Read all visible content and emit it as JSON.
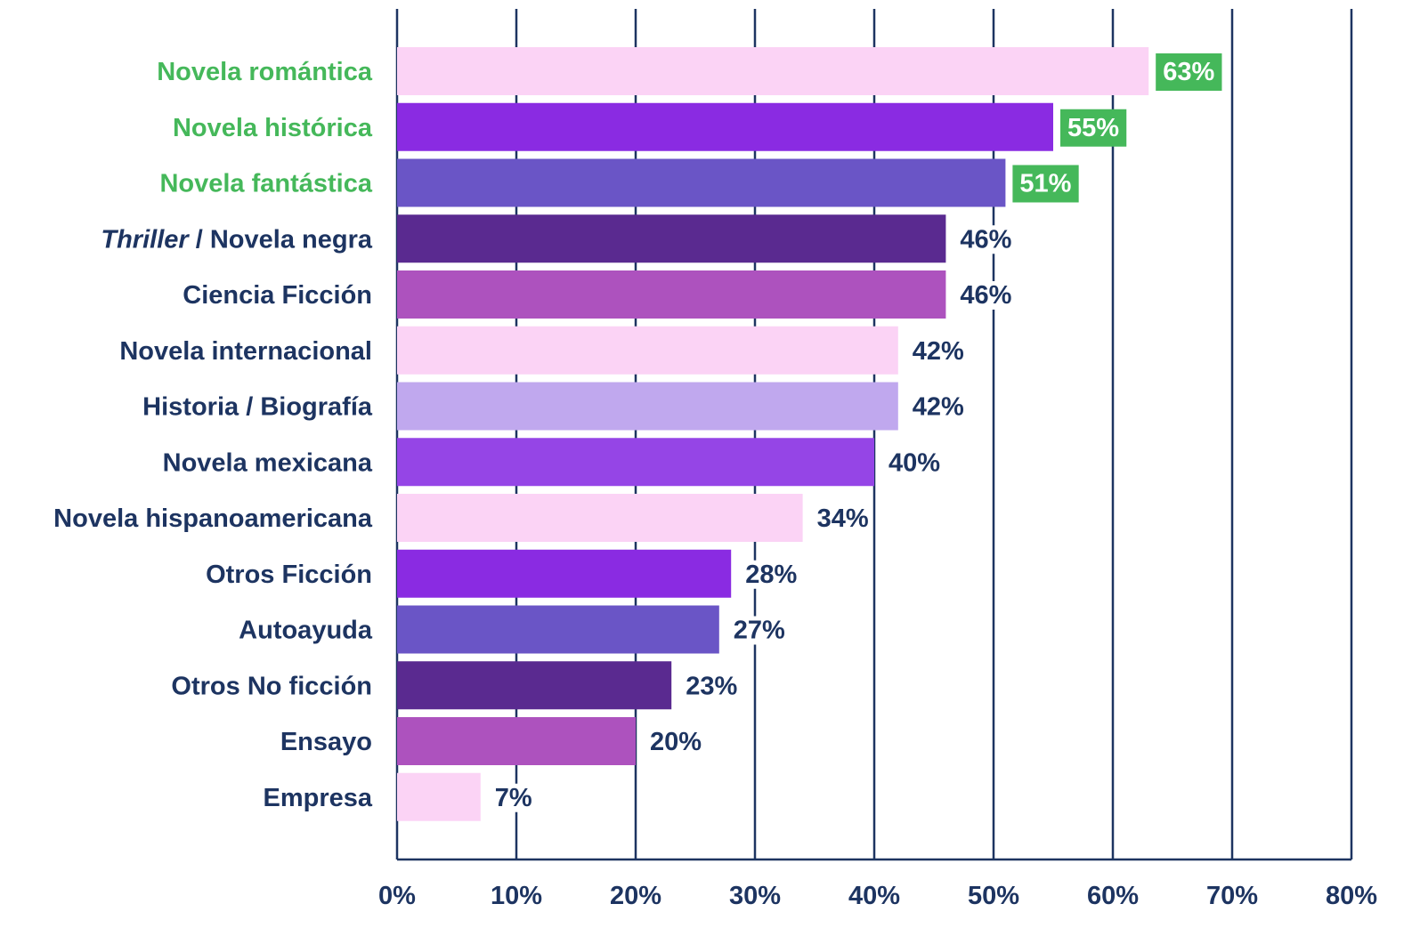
{
  "chart_data": {
    "type": "bar",
    "orientation": "horizontal",
    "title": "",
    "xlabel": "",
    "ylabel": "",
    "xlim": [
      0,
      80
    ],
    "x_ticks": [
      0,
      10,
      20,
      30,
      40,
      50,
      60,
      70,
      80
    ],
    "x_tick_labels": [
      "0%",
      "10%",
      "20%",
      "30%",
      "40%",
      "50%",
      "60%",
      "70%",
      "80%"
    ],
    "grid": "vertical",
    "categories": [
      "Novela romántica",
      "Novela histórica",
      "Novela fantástica",
      "Thriller / Novela negra",
      "Ciencia Ficción",
      "Novela internacional",
      "Historia / Biografía",
      "Novela mexicana",
      "Novela hispanoamericana",
      "Otros Ficción",
      "Autoayuda",
      "Otros No ficción",
      "Ensayo",
      "Empresa"
    ],
    "values": [
      63,
      55,
      51,
      46,
      46,
      42,
      42,
      40,
      34,
      28,
      27,
      23,
      20,
      7
    ],
    "value_labels": [
      "63%",
      "55%",
      "51%",
      "46%",
      "46%",
      "42%",
      "42%",
      "40%",
      "34%",
      "28%",
      "27%",
      "23%",
      "20%",
      "7%"
    ],
    "category_label_parts": {
      "Thriller / Novela negra": [
        {
          "text": "Thriller",
          "italic": true
        },
        {
          "text": " / Novela negra",
          "italic": false
        }
      ]
    },
    "highlighted_categories": [
      "Novela romántica",
      "Novela histórica",
      "Novela fantástica"
    ],
    "bar_colors": [
      "#fbd3f5",
      "#8a2be2",
      "#6a55c6",
      "#5a2a90",
      "#ad52be",
      "#fbd3f5",
      "#c0a8ee",
      "#9545e6",
      "#fbd3f5",
      "#8a2be2",
      "#6a55c6",
      "#5a2a90",
      "#ad52be",
      "#fbd3f5"
    ],
    "colors": {
      "text": "#1d3461",
      "highlight": "#45b85a",
      "highlight_label_text": "#ffffff",
      "grid": "#1d3461"
    }
  }
}
